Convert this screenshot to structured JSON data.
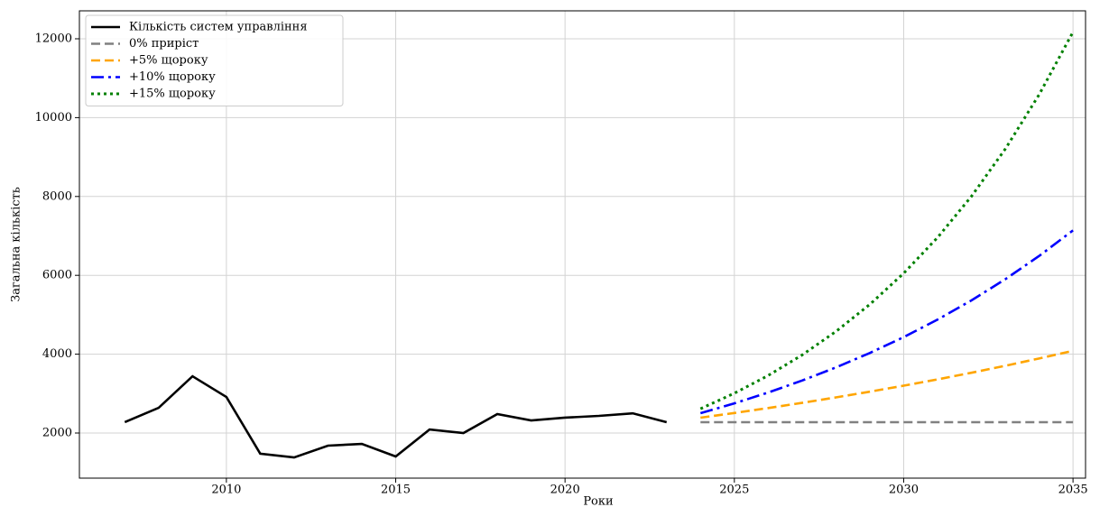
{
  "chart_data": {
    "type": "line",
    "xlabel": "Роки",
    "ylabel": "Загальна кількість",
    "xlim": [
      2005.66,
      2035.37
    ],
    "ylim": [
      856,
      12709
    ],
    "xticks": [
      2010,
      2015,
      2020,
      2025,
      2030,
      2035
    ],
    "yticks": [
      2000,
      4000,
      6000,
      8000,
      10000,
      12000
    ],
    "grid": true,
    "legend": "upper left",
    "series": [
      {
        "name": "Кількість систем управління",
        "color": "#000000",
        "linestyle": "solid",
        "x": [
          2007,
          2008,
          2009,
          2010,
          2011,
          2012,
          2013,
          2014,
          2015,
          2016,
          2017,
          2018,
          2019,
          2020,
          2021,
          2022,
          2023
        ],
        "values": [
          2275,
          2640,
          3440,
          2915,
          1475,
          1380,
          1680,
          1725,
          1405,
          2090,
          2000,
          2480,
          2320,
          2390,
          2435,
          2500,
          2275
        ]
      },
      {
        "name": "0% приріст",
        "color": "#808080",
        "linestyle": "dashed",
        "x": [
          2024,
          2025,
          2026,
          2027,
          2028,
          2029,
          2030,
          2031,
          2032,
          2033,
          2034,
          2035
        ],
        "values": [
          2275,
          2275,
          2275,
          2275,
          2275,
          2275,
          2275,
          2275,
          2275,
          2275,
          2275,
          2275
        ]
      },
      {
        "name": "+5% щороку",
        "color": "#ffa500",
        "linestyle": "dashed",
        "x": [
          2024,
          2025,
          2026,
          2027,
          2028,
          2029,
          2030,
          2031,
          2032,
          2033,
          2034,
          2035
        ],
        "values": [
          2389,
          2508,
          2634,
          2765,
          2904,
          3049,
          3201,
          3361,
          3529,
          3706,
          3891,
          4086
        ]
      },
      {
        "name": "+10% щороку",
        "color": "#0000ff",
        "linestyle": "dashdot",
        "x": [
          2024,
          2025,
          2026,
          2027,
          2028,
          2029,
          2030,
          2031,
          2032,
          2033,
          2034,
          2035
        ],
        "values": [
          2503,
          2753,
          3028,
          3331,
          3664,
          4030,
          4433,
          4877,
          5364,
          5901,
          6491,
          7140
        ]
      },
      {
        "name": "+15% щороку",
        "color": "#008000",
        "linestyle": "dotted",
        "x": [
          2024,
          2025,
          2026,
          2027,
          2028,
          2029,
          2030,
          2031,
          2032,
          2033,
          2034,
          2035
        ],
        "values": [
          2616,
          3009,
          3460,
          3979,
          4576,
          5262,
          6052,
          6959,
          8003,
          9204,
          10584,
          12172
        ]
      }
    ]
  }
}
